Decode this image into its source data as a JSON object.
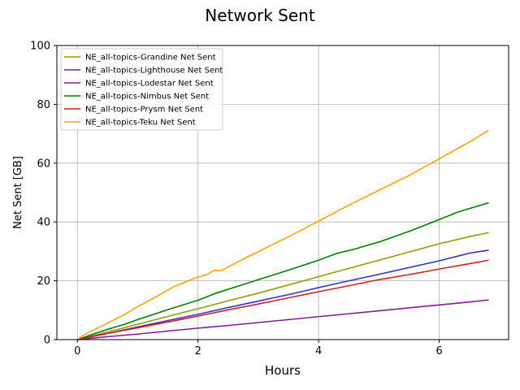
{
  "chart_data": {
    "type": "line",
    "title": "Network Sent",
    "xlabel": "Hours",
    "ylabel": "Net Sent [GB]",
    "xlim": [
      -0.34,
      7.15
    ],
    "ylim": [
      0,
      100
    ],
    "xticks": [
      0,
      2,
      4,
      6
    ],
    "yticks": [
      0,
      20,
      40,
      60,
      80,
      100
    ],
    "grid": true,
    "legend_position": "top-left",
    "series": [
      {
        "name": "NE_all-topics-Grandine Net Sent",
        "color": "#999900",
        "x": [
          0,
          0.5,
          1,
          1.5,
          2,
          2.5,
          3,
          3.5,
          4,
          4.5,
          5,
          5.5,
          6,
          6.5,
          6.82
        ],
        "y": [
          0,
          2.6,
          5.2,
          7.9,
          10.5,
          13.2,
          15.8,
          18.6,
          21.4,
          24.2,
          27.0,
          29.8,
          32.6,
          35.0,
          36.4
        ]
      },
      {
        "name": "NE_all-topics-Lighthouse Net Sent",
        "color": "#3333cc",
        "x": [
          0,
          0.5,
          1,
          1.5,
          2,
          2.5,
          3,
          3.5,
          4,
          4.5,
          5,
          5.5,
          6,
          6.5,
          6.82
        ],
        "y": [
          0,
          2.1,
          4.3,
          6.5,
          8.6,
          10.9,
          13.1,
          15.3,
          17.7,
          20.0,
          22.2,
          24.5,
          26.8,
          29.4,
          30.4
        ]
      },
      {
        "name": "NE_all-topics-Lodestar Net Sent",
        "color": "#7f1f8f",
        "x": [
          0,
          0.5,
          1,
          1.5,
          2,
          2.5,
          3,
          3.5,
          4,
          4.5,
          5,
          5.5,
          6,
          6.5,
          6.82
        ],
        "y": [
          0,
          1.0,
          1.9,
          2.9,
          3.9,
          4.8,
          5.8,
          6.8,
          7.8,
          8.8,
          9.8,
          10.8,
          11.8,
          12.8,
          13.5
        ]
      },
      {
        "name": "NE_all-topics-Nimbus Net Sent",
        "color": "#008000",
        "x": [
          0,
          0.25,
          0.5,
          0.75,
          1,
          1.5,
          2,
          2.3,
          2.7,
          3,
          3.3,
          3.6,
          4,
          4.3,
          4.6,
          5,
          5.5,
          6,
          6.3,
          6.6,
          6.82
        ],
        "y": [
          0,
          1.8,
          3.5,
          5.0,
          6.8,
          10.2,
          13.4,
          15.8,
          18.4,
          20.4,
          22.3,
          24.3,
          27.0,
          29.3,
          30.8,
          33.2,
          36.8,
          40.8,
          43.3,
          45.2,
          46.5
        ]
      },
      {
        "name": "NE_all-topics-Prysm Net Sent",
        "color": "#cc2222",
        "x": [
          0,
          0.5,
          1,
          1.5,
          2,
          2.5,
          3,
          3.5,
          4,
          4.5,
          5,
          5.5,
          6,
          6.5,
          6.82
        ],
        "y": [
          0,
          2.1,
          4.0,
          6.0,
          8.0,
          10.1,
          12.1,
          14.2,
          16.3,
          18.3,
          20.4,
          22.1,
          24.0,
          25.8,
          27.0
        ]
      },
      {
        "name": "NE_all-topics-Teku Net Sent",
        "color": "#ffa500",
        "x": [
          0,
          0.1,
          0.3,
          0.5,
          0.75,
          1,
          1.3,
          1.6,
          2,
          2.15,
          2.25,
          2.4,
          2.6,
          2.8,
          3,
          3.5,
          4,
          4.5,
          5,
          5.5,
          6,
          6.5,
          6.82
        ],
        "y": [
          0,
          1.5,
          3.6,
          5.6,
          8.2,
          11.2,
          14.5,
          18.0,
          21.3,
          22.1,
          23.4,
          23.6,
          25.8,
          27.9,
          29.9,
          35.0,
          40.3,
          45.7,
          50.8,
          55.8,
          61.5,
          67.2,
          71.2
        ]
      }
    ]
  }
}
